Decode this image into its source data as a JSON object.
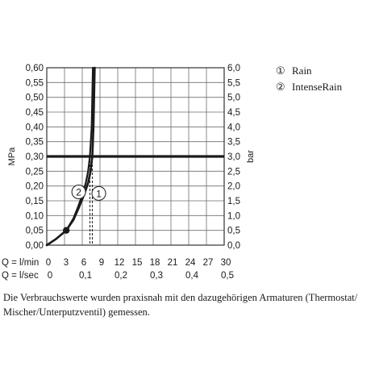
{
  "chart_data": {
    "type": "line",
    "title": "",
    "ylabel_left": "MPa",
    "ylabel_right": "bar",
    "y_left_ticks": [
      "0,00",
      "0,05",
      "0,10",
      "0,15",
      "0,20",
      "0,25",
      "0,30",
      "0,35",
      "0,40",
      "0,45",
      "0,50",
      "0,55",
      "0,60"
    ],
    "y_right_ticks": [
      "0,0",
      "0,5",
      "1,0",
      "1,5",
      "2,0",
      "2,5",
      "3,0",
      "3,5",
      "4,0",
      "4,5",
      "5,0",
      "5,5",
      "6,0"
    ],
    "ylim": [
      0,
      0.6
    ],
    "x_row_lmin": {
      "label": "Q = l/min",
      "ticks": [
        "0",
        "3",
        "6",
        "9",
        "12",
        "15",
        "18",
        "21",
        "24",
        "27",
        "30"
      ]
    },
    "x_row_lsec": {
      "label": "Q = l/sec",
      "ticks": [
        "0",
        "0,1",
        "0,2",
        "0,3",
        "0,4",
        "0,5"
      ]
    },
    "xlim_lmin": [
      0,
      30
    ],
    "grid": true,
    "reference_line": {
      "y": 0.3
    },
    "marker_point": {
      "x": 3.3,
      "y": 0.05
    },
    "series": [
      {
        "name": "Rain",
        "marker": "1",
        "x": [
          0,
          1.5,
          3.3,
          4.5,
          5.5,
          6.3,
          7,
          7.4,
          7.7,
          7.9,
          8.1
        ],
        "y": [
          0,
          0.02,
          0.05,
          0.085,
          0.13,
          0.17,
          0.21,
          0.25,
          0.3,
          0.4,
          0.6
        ],
        "dashed_drop_x": 7.7
      },
      {
        "name": "IntenseRain",
        "marker": "2",
        "x": [
          0,
          1.5,
          3.3,
          4.5,
          5.3,
          6,
          6.6,
          7,
          7.3,
          7.6,
          7.8
        ],
        "y": [
          0,
          0.02,
          0.05,
          0.09,
          0.13,
          0.17,
          0.21,
          0.25,
          0.3,
          0.4,
          0.6
        ],
        "dashed_drop_x": 7.3
      }
    ],
    "legend": [
      {
        "symbol": "①",
        "label": "Rain"
      },
      {
        "symbol": "②",
        "label": "IntenseRain"
      }
    ],
    "legend_placement": "right"
  },
  "note": "Die Verbrauchswerte wurden praxisnah mit den dazugehörigen Armaturen (Thermostat/ Mischer/Unterputzventil) gemessen."
}
